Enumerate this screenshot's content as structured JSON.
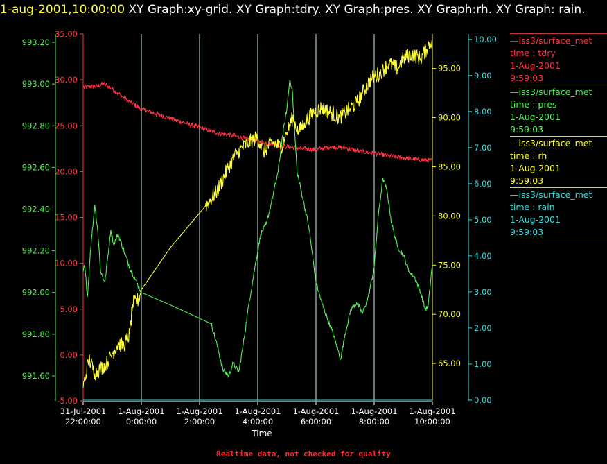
{
  "header": {
    "timestamp": "1-aug-2001,10:00:00",
    "title_rest": " XY Graph:xy-grid.  XY Graph:tdry.  XY Graph:pres.  XY Graph:rh.  XY Graph: rain."
  },
  "footer": {
    "note": "Realtime data, not checked for quality"
  },
  "colors": {
    "tdry": "#ff3344",
    "pres": "#55ee55",
    "rh": "#ffff33",
    "rain": "#33dddd",
    "grid": "#cceeee",
    "axis_x": "#ffffff"
  },
  "legend": [
    {
      "key": "tdry",
      "source": "—iss3/surface_met",
      "label": "time : tdry",
      "date": "1-Aug-2001",
      "time": "9:59:03"
    },
    {
      "key": "pres",
      "source": "—iss3/surface_met",
      "label": "time : pres",
      "date": "1-Aug-2001",
      "time": "9:59:03"
    },
    {
      "key": "rh",
      "source": "—iss3/surface_met",
      "label": "time : rh",
      "date": "1-Aug-2001",
      "time": "9:59:03"
    },
    {
      "key": "rain",
      "source": "—iss3/surface_met",
      "label": "time : rain",
      "date": "1-Aug-2001",
      "time": "9:59:03"
    }
  ],
  "chart_data": {
    "type": "line",
    "xlabel": "Time",
    "x_ticks": [
      {
        "d": "31-Jul-2001",
        "t": "22:00:00",
        "h": -2
      },
      {
        "d": "1-Aug-2001",
        "t": "0:00:00",
        "h": 0
      },
      {
        "d": "1-Aug-2001",
        "t": "2:00:00",
        "h": 2
      },
      {
        "d": "1-Aug-2001",
        "t": "4:00:00",
        "h": 4
      },
      {
        "d": "1-Aug-2001",
        "t": "6:00:00",
        "h": 6
      },
      {
        "d": "1-Aug-2001",
        "t": "8:00:00",
        "h": 8
      },
      {
        "d": "1-Aug-2001",
        "t": "10:00:00",
        "h": 10
      }
    ],
    "xlim": [
      -2,
      10
    ],
    "axes": {
      "tdry": {
        "ylim": [
          -5,
          35
        ],
        "ticks": [
          "-5.00",
          "0.00",
          "5.00",
          "10.00",
          "15.00",
          "20.00",
          "25.00",
          "30.00",
          "35.00"
        ]
      },
      "pres": {
        "ylim": [
          991.48,
          993.24
        ],
        "ticks": [
          "991.60",
          "991.80",
          "992.00",
          "992.20",
          "992.40",
          "992.60",
          "992.80",
          "993.00",
          "993.20"
        ]
      },
      "rh": {
        "ylim": [
          61.2,
          98.5
        ],
        "ticks": [
          "65.00",
          "70.00",
          "75.00",
          "80.00",
          "85.00",
          "90.00",
          "95.00"
        ]
      },
      "rain": {
        "ylim": [
          -0.02,
          10.15
        ],
        "ticks": [
          "0.00",
          "1.00",
          "2.00",
          "3.00",
          "4.00",
          "5.00",
          "6.00",
          "7.00",
          "8.00",
          "9.00",
          "10.00"
        ]
      }
    },
    "series": [
      {
        "key": "tdry",
        "noise": 0.25,
        "points": [
          [
            -2,
            29.2
          ],
          [
            -1.5,
            29.3
          ],
          [
            -1.3,
            29.6
          ],
          [
            -1,
            29.0
          ],
          [
            -0.5,
            27.8
          ],
          [
            0,
            26.8
          ],
          [
            0.5,
            26.3
          ],
          [
            1,
            25.8
          ],
          [
            1.5,
            25.3
          ],
          [
            2,
            24.8
          ],
          [
            2.5,
            24.3
          ],
          [
            3,
            24.0
          ],
          [
            3.3,
            23.8
          ],
          [
            3.6,
            23.6
          ],
          [
            4,
            23.3
          ],
          [
            4.5,
            23.0
          ],
          [
            5,
            22.7
          ],
          [
            5.5,
            22.5
          ],
          [
            6,
            22.4
          ],
          [
            6.5,
            22.7
          ],
          [
            7,
            22.6
          ],
          [
            7.5,
            22.2
          ],
          [
            8,
            22.0
          ],
          [
            8.5,
            21.7
          ],
          [
            9,
            21.5
          ],
          [
            9.5,
            21.3
          ],
          [
            10,
            21.2
          ]
        ]
      },
      {
        "key": "pres",
        "noise": 0.012,
        "points": [
          [
            -2,
            992.1
          ],
          [
            -1.95,
            992.13
          ],
          [
            -1.85,
            991.98
          ],
          [
            -1.75,
            992.2
          ],
          [
            -1.6,
            992.42
          ],
          [
            -1.5,
            992.3
          ],
          [
            -1.4,
            992.1
          ],
          [
            -1.25,
            992.05
          ],
          [
            -1.05,
            992.3
          ],
          [
            -0.95,
            992.23
          ],
          [
            -0.8,
            992.28
          ],
          [
            -0.6,
            992.2
          ],
          [
            -0.4,
            992.12
          ],
          [
            -0.2,
            992.06
          ],
          [
            0,
            992.0
          ],
          [
            1,
            991.94
          ],
          [
            2.4,
            991.85
          ],
          [
            2.6,
            991.75
          ],
          [
            2.8,
            991.63
          ],
          [
            3.0,
            991.6
          ],
          [
            3.15,
            991.66
          ],
          [
            3.35,
            991.62
          ],
          [
            3.5,
            991.75
          ],
          [
            3.7,
            991.95
          ],
          [
            3.9,
            992.12
          ],
          [
            4.1,
            992.28
          ],
          [
            4.3,
            992.33
          ],
          [
            4.5,
            992.45
          ],
          [
            4.7,
            992.58
          ],
          [
            4.85,
            992.75
          ],
          [
            5.0,
            992.88
          ],
          [
            5.1,
            993.02
          ],
          [
            5.18,
            992.98
          ],
          [
            5.35,
            992.58
          ],
          [
            5.55,
            992.45
          ],
          [
            5.75,
            992.32
          ],
          [
            6.0,
            992.05
          ],
          [
            6.2,
            991.95
          ],
          [
            6.4,
            991.87
          ],
          [
            6.55,
            991.82
          ],
          [
            6.7,
            991.75
          ],
          [
            6.85,
            991.68
          ],
          [
            7.0,
            991.8
          ],
          [
            7.2,
            991.92
          ],
          [
            7.4,
            991.95
          ],
          [
            7.6,
            991.9
          ],
          [
            7.8,
            991.98
          ],
          [
            8.0,
            992.12
          ],
          [
            8.15,
            992.38
          ],
          [
            8.3,
            992.55
          ],
          [
            8.45,
            992.48
          ],
          [
            8.6,
            992.33
          ],
          [
            8.8,
            992.22
          ],
          [
            9.0,
            992.18
          ],
          [
            9.2,
            992.1
          ],
          [
            9.4,
            992.07
          ],
          [
            9.6,
            992.0
          ],
          [
            9.75,
            991.92
          ],
          [
            9.85,
            991.93
          ],
          [
            10,
            992.14
          ]
        ]
      },
      {
        "key": "rh",
        "noise": 0.8,
        "points": [
          [
            -2,
            62.5
          ],
          [
            -1.8,
            65.5
          ],
          [
            -1.6,
            64.0
          ],
          [
            -1.4,
            64.5
          ],
          [
            -1.2,
            65.0
          ],
          [
            -1.0,
            66.0
          ],
          [
            -0.8,
            67.0
          ],
          [
            -0.6,
            66.8
          ],
          [
            -0.4,
            68.0
          ],
          [
            -0.3,
            71.0
          ],
          [
            -0.1,
            71.5
          ],
          [
            0,
            72.5
          ],
          [
            1,
            76.8
          ],
          [
            2.2,
            81.0
          ],
          [
            2.6,
            82.5
          ],
          [
            3.0,
            85.0
          ],
          [
            3.3,
            86.5
          ],
          [
            3.7,
            87.5
          ],
          [
            4.0,
            88.0
          ],
          [
            4.2,
            86.5
          ],
          [
            4.5,
            87.5
          ],
          [
            4.8,
            87.0
          ],
          [
            5.0,
            88.5
          ],
          [
            5.2,
            90.0
          ],
          [
            5.4,
            88.5
          ],
          [
            5.6,
            89.5
          ],
          [
            5.9,
            90.5
          ],
          [
            6.2,
            91.0
          ],
          [
            6.5,
            90.5
          ],
          [
            6.8,
            90.0
          ],
          [
            7.0,
            90.5
          ],
          [
            7.2,
            91.0
          ],
          [
            7.4,
            91.5
          ],
          [
            7.6,
            92.5
          ],
          [
            7.9,
            94.0
          ],
          [
            8.2,
            94.5
          ],
          [
            8.5,
            95.5
          ],
          [
            8.8,
            95.0
          ],
          [
            9.0,
            96.0
          ],
          [
            9.3,
            96.5
          ],
          [
            9.6,
            96.0
          ],
          [
            9.8,
            97.0
          ],
          [
            10,
            98.0
          ]
        ]
      },
      {
        "key": "rain",
        "noise": 0,
        "points": [
          [
            -2,
            0.0
          ],
          [
            10,
            0.0
          ]
        ]
      }
    ]
  }
}
